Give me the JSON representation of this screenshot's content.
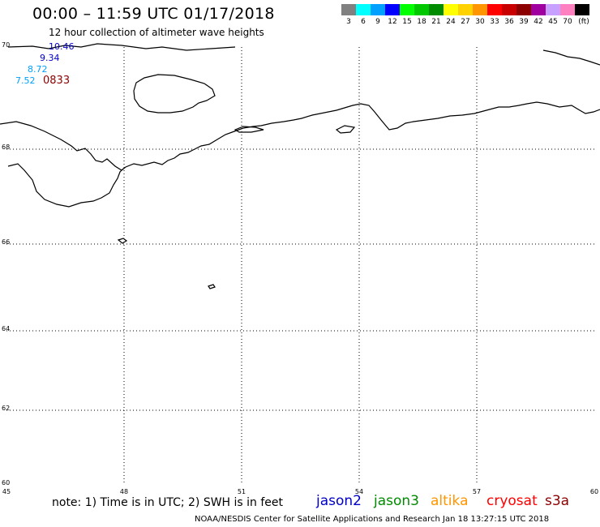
{
  "header": {
    "title": "00:00 – 11:59 UTC 01/17/2018",
    "subtitle": "12 hour collection of altimeter wave heights"
  },
  "legend": {
    "unit": "(ft)",
    "bins": [
      {
        "label": "3",
        "color": "#808080"
      },
      {
        "label": "6",
        "color": "#00ffff"
      },
      {
        "label": "9",
        "color": "#00a0ff"
      },
      {
        "label": "12",
        "color": "#0000ff"
      },
      {
        "label": "15",
        "color": "#00ff00"
      },
      {
        "label": "18",
        "color": "#00c800"
      },
      {
        "label": "21",
        "color": "#008c00"
      },
      {
        "label": "24",
        "color": "#ffff00"
      },
      {
        "label": "27",
        "color": "#ffd200"
      },
      {
        "label": "30",
        "color": "#ff9600"
      },
      {
        "label": "33",
        "color": "#ff0000"
      },
      {
        "label": "36",
        "color": "#c80000"
      },
      {
        "label": "39",
        "color": "#8c0000"
      },
      {
        "label": "42",
        "color": "#a000a0"
      },
      {
        "label": "45",
        "color": "#c8a0ff"
      },
      {
        "label": "70",
        "color": "#ff80c0"
      },
      {
        "label": "",
        "color": "#000000"
      }
    ]
  },
  "map": {
    "lat_ticks": [
      "70",
      "68",
      "66",
      "64",
      "62",
      "60"
    ],
    "lon_ticks": [
      "45",
      "48",
      "51",
      "54",
      "57",
      "60"
    ],
    "lat_range": [
      60,
      70
    ],
    "lon_range": [
      45,
      60
    ],
    "gridline_style": "dotted",
    "observations": [
      {
        "value": "10.46",
        "color": "#0000c8"
      },
      {
        "value": "9.34",
        "color": "#0000c8"
      },
      {
        "value": "8.72",
        "color": "#00a0ff"
      },
      {
        "value": "7.52",
        "color": "#00a0ff"
      },
      {
        "value": "0833",
        "color": "#8c0000"
      }
    ]
  },
  "footer": {
    "note": "note: 1) Time is in UTC; 2) SWH is in feet",
    "missions": [
      {
        "name": "jason2",
        "color": "#0000c8"
      },
      {
        "name": "jason3",
        "color": "#008c00"
      },
      {
        "name": "altika",
        "color": "#ff9600"
      },
      {
        "name": "cryosat",
        "color": "#ff0000"
      },
      {
        "name": "s3a",
        "color": "#8c0000"
      }
    ],
    "credit": "NOAA/NESDIS Center for Satellite Applications and Research    Jan 18 13:27:15 UTC 2018"
  }
}
